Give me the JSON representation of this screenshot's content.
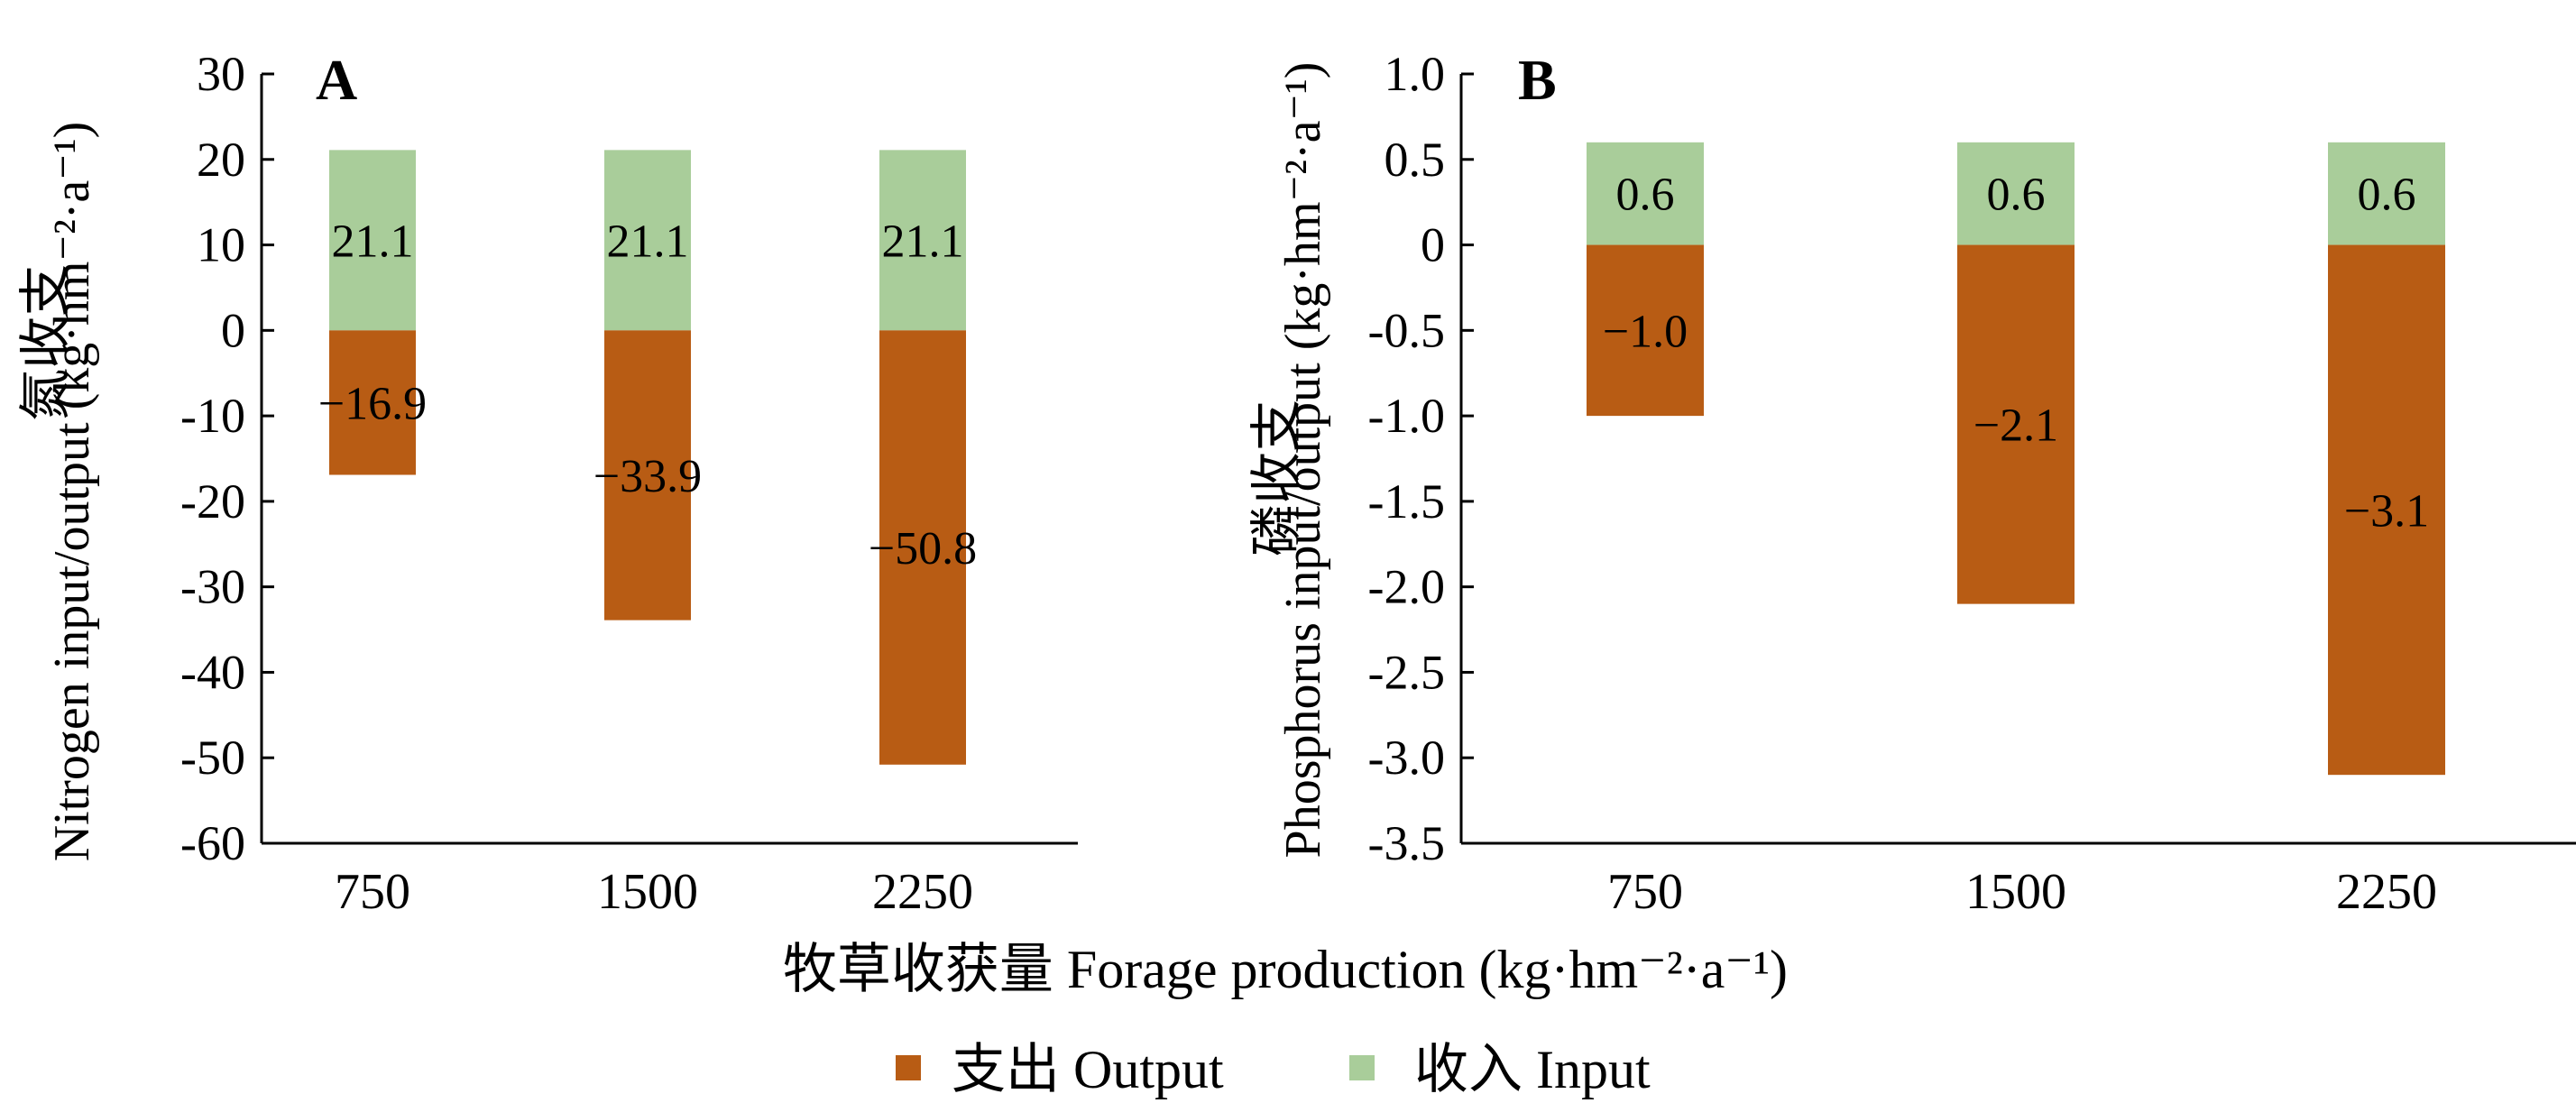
{
  "colors": {
    "output": "#b85c14",
    "input": "#a9cd9a",
    "axis": "#000000"
  },
  "shared": {
    "xlabel": "牧草收获量 Forage production (kg·hm⁻²·a⁻¹)",
    "legend_placement": "bottom-center",
    "legend": [
      {
        "name": "支出 Output",
        "color": "#b85c14"
      },
      {
        "name": "收入 Input",
        "color": "#a9cd9a"
      }
    ]
  },
  "chart_data": [
    {
      "type": "bar",
      "panel_label": "A",
      "ylabel_zh": "氮收支",
      "ylabel_en": "Nitrogen input/output (kg·hm⁻²·a⁻¹)",
      "categories": [
        "750",
        "1500",
        "2250"
      ],
      "ylim": [
        -60,
        30
      ],
      "yticks": [
        30,
        20,
        10,
        0,
        -10,
        -20,
        -30,
        -40,
        -50,
        -60
      ],
      "ytick_labels": [
        "30",
        "20",
        "10",
        "0",
        "-10",
        "-20",
        "-30",
        "-40",
        "-50",
        "-60"
      ],
      "grid": false,
      "series": [
        {
          "name": "收入 Input",
          "values": [
            21.1,
            21.1,
            21.1
          ],
          "labels": [
            "21.1",
            "21.1",
            "21.1"
          ]
        },
        {
          "name": "支出 Output",
          "values": [
            -16.9,
            -33.9,
            -50.8
          ],
          "labels": [
            "−16.9",
            "−33.9",
            "−50.8"
          ]
        }
      ]
    },
    {
      "type": "bar",
      "panel_label": "B",
      "ylabel_zh": "磷收支",
      "ylabel_en": "Phosphorus input/output (kg·hm⁻²·a⁻¹)",
      "categories": [
        "750",
        "1500",
        "2250"
      ],
      "ylim": [
        -3.5,
        1.0
      ],
      "yticks": [
        1.0,
        0.5,
        0,
        -0.5,
        -1.0,
        -1.5,
        -2.0,
        -2.5,
        -3.0,
        -3.5
      ],
      "ytick_labels": [
        "1.0",
        "0.5",
        "0",
        "-0.5",
        "-1.0",
        "-1.5",
        "-2.0",
        "-2.5",
        "-3.0",
        "-3.5"
      ],
      "grid": false,
      "series": [
        {
          "name": "收入 Input",
          "values": [
            0.6,
            0.6,
            0.6
          ],
          "labels": [
            "0.6",
            "0.6",
            "0.6"
          ]
        },
        {
          "name": "支出 Output",
          "values": [
            -1.0,
            -2.1,
            -3.1
          ],
          "labels": [
            "−1.0",
            "−2.1",
            "−3.1"
          ]
        }
      ]
    }
  ]
}
